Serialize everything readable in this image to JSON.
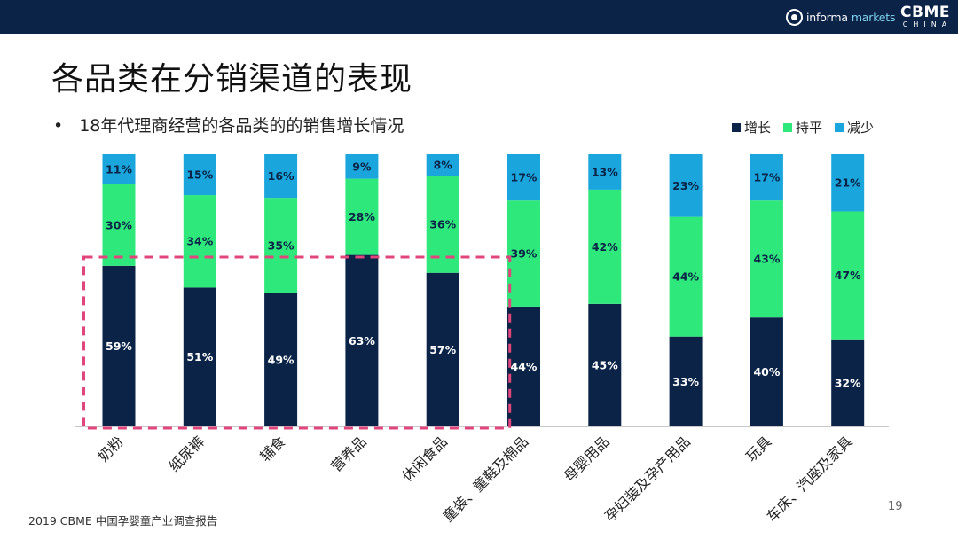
{
  "header": {
    "logo_informa_a": "informa",
    "logo_informa_b": "markets",
    "logo_cbme": "CBME",
    "logo_cbme_sub": "CHINA"
  },
  "slide": {
    "title": "各品类在分销渠道的表现",
    "bullet_mark": "•",
    "bullet": "18年代理商经营的各品类的的销售增长情况"
  },
  "colors": {
    "increase": "#0b2347",
    "flat": "#2ee87c",
    "decrease": "#1aa6dc",
    "highlight": "#e0467c"
  },
  "chart_data": {
    "type": "stacked-bar",
    "categories": [
      "奶粉",
      "纸尿裤",
      "辅食",
      "营养品",
      "休闲食品",
      "童装、童鞋及棉品",
      "母婴用品",
      "孕妇装及孕产用品",
      "玩具",
      "车床、汽座及家具"
    ],
    "series": [
      {
        "name": "增长",
        "values": [
          59,
          51,
          49,
          63,
          57,
          44,
          45,
          33,
          40,
          32
        ]
      },
      {
        "name": "持平",
        "values": [
          30,
          34,
          35,
          28,
          36,
          39,
          42,
          44,
          43,
          47
        ]
      },
      {
        "name": "减少",
        "values": [
          11,
          15,
          16,
          9,
          8,
          17,
          13,
          23,
          17,
          21
        ]
      }
    ],
    "unit": "%",
    "highlight_categories": [
      "奶粉",
      "纸尿裤",
      "辅食",
      "营养品",
      "休闲食品"
    ],
    "legend_position": "top-right"
  },
  "footer": {
    "source": "2019 CBME 中国孕婴童产业调查报告",
    "page": "19"
  }
}
